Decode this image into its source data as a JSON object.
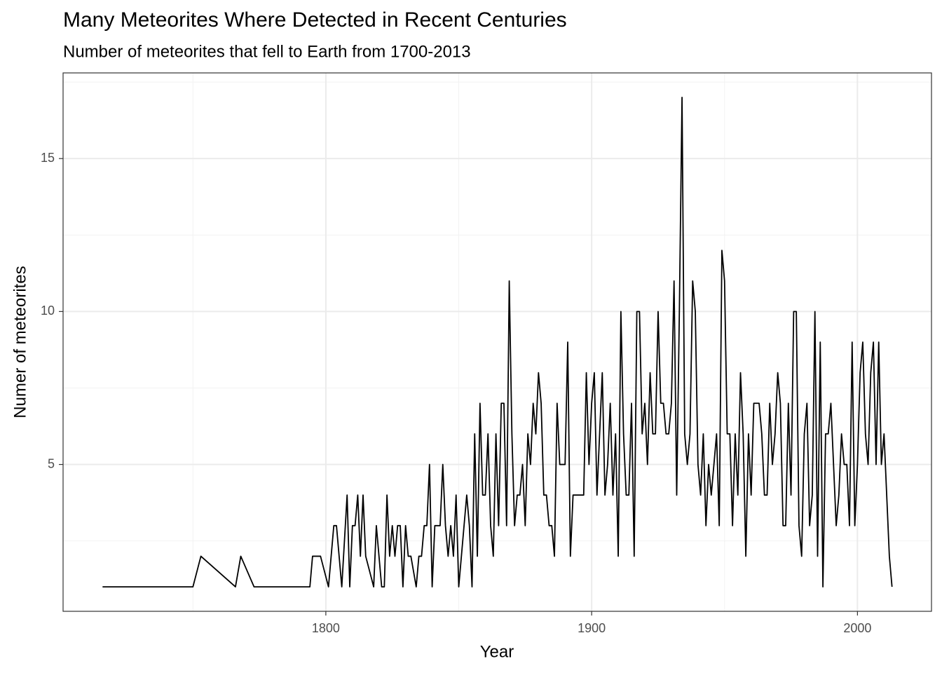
{
  "chart_data": {
    "type": "line",
    "title": "Many Meteorites Where Detected in Recent Centuries",
    "subtitle": "Number of meteorites that fell to Earth from 1700-2013",
    "x_label": "Year",
    "y_label": "Numer of meteorites",
    "color": "#000000",
    "grid": true,
    "xlim": [
      1701.15,
      2027.85
    ],
    "xticks": [
      1800,
      1900,
      2000
    ],
    "x_minor_grid": [
      1750,
      1850,
      1950
    ],
    "ylim": [
      0.2,
      17.8
    ],
    "yticks": [
      5,
      10,
      15
    ],
    "y_minor_grid": [
      2.5,
      7.5,
      12.5,
      17.5
    ],
    "x": [
      1716,
      1750,
      1753,
      1766,
      1768,
      1773,
      1794,
      1795,
      1798,
      1801,
      1803,
      1804,
      1806,
      1808,
      1809,
      1810,
      1811,
      1812,
      1813,
      1814,
      1815,
      1818,
      1819,
      1821,
      1822,
      1823,
      1824,
      1825,
      1826,
      1827,
      1828,
      1829,
      1830,
      1831,
      1832,
      1834,
      1835,
      1836,
      1837,
      1838,
      1839,
      1840,
      1841,
      1843,
      1844,
      1845,
      1846,
      1847,
      1848,
      1849,
      1850,
      1851,
      1853,
      1854,
      1855,
      1856,
      1857,
      1858,
      1859,
      1860,
      1861,
      1862,
      1863,
      1864,
      1865,
      1866,
      1867,
      1868,
      1869,
      1870,
      1871,
      1872,
      1873,
      1874,
      1875,
      1876,
      1877,
      1878,
      1879,
      1880,
      1881,
      1882,
      1883,
      1884,
      1885,
      1886,
      1887,
      1888,
      1889,
      1890,
      1891,
      1892,
      1893,
      1894,
      1897,
      1898,
      1899,
      1900,
      1901,
      1902,
      1903,
      1904,
      1905,
      1906,
      1907,
      1908,
      1909,
      1910,
      1911,
      1912,
      1913,
      1914,
      1915,
      1916,
      1917,
      1918,
      1919,
      1920,
      1921,
      1922,
      1923,
      1924,
      1925,
      1926,
      1927,
      1928,
      1929,
      1930,
      1931,
      1932,
      1933,
      1934,
      1935,
      1936,
      1937,
      1938,
      1939,
      1940,
      1941,
      1942,
      1943,
      1944,
      1945,
      1946,
      1947,
      1948,
      1949,
      1950,
      1951,
      1952,
      1953,
      1954,
      1955,
      1956,
      1957,
      1958,
      1959,
      1960,
      1961,
      1962,
      1963,
      1964,
      1965,
      1966,
      1967,
      1968,
      1969,
      1970,
      1971,
      1972,
      1973,
      1974,
      1975,
      1976,
      1977,
      1978,
      1979,
      1980,
      1981,
      1982,
      1983,
      1984,
      1985,
      1986,
      1987,
      1988,
      1989,
      1990,
      1991,
      1992,
      1993,
      1994,
      1995,
      1996,
      1997,
      1998,
      1999,
      2000,
      2001,
      2002,
      2003,
      2004,
      2005,
      2006,
      2007,
      2008,
      2009,
      2010,
      2012,
      2013
    ],
    "values": [
      1,
      1,
      2,
      1,
      2,
      1,
      1,
      2,
      2,
      1,
      3,
      3,
      1,
      4,
      1,
      3,
      3,
      4,
      2,
      4,
      2,
      1,
      3,
      1,
      1,
      4,
      2,
      3,
      2,
      3,
      3,
      1,
      3,
      2,
      2,
      1,
      2,
      2,
      3,
      3,
      5,
      1,
      3,
      3,
      5,
      3,
      2,
      3,
      2,
      4,
      1,
      2,
      4,
      3,
      1,
      6,
      2,
      7,
      4,
      4,
      6,
      3,
      2,
      6,
      3,
      7,
      7,
      3,
      11,
      6,
      3,
      4,
      4,
      5,
      3,
      6,
      5,
      7,
      6,
      8,
      7,
      4,
      4,
      3,
      3,
      2,
      7,
      5,
      5,
      5,
      9,
      2,
      4,
      4,
      4,
      8,
      5,
      7,
      8,
      4,
      6,
      8,
      4,
      5,
      7,
      4,
      6,
      2,
      10,
      6,
      4,
      4,
      7,
      2,
      10,
      10,
      6,
      7,
      5,
      8,
      6,
      6,
      10,
      7,
      7,
      6,
      6,
      7,
      11,
      4,
      10,
      17,
      6,
      5,
      6,
      11,
      10,
      5,
      4,
      6,
      3,
      5,
      4,
      5,
      6,
      3,
      12,
      11,
      6,
      6,
      3,
      6,
      4,
      8,
      6,
      2,
      6,
      4,
      7,
      7,
      7,
      6,
      4,
      4,
      7,
      5,
      6,
      8,
      7,
      3,
      3,
      7,
      4,
      10,
      10,
      3,
      2,
      6,
      7,
      3,
      4,
      10,
      2,
      9,
      1,
      6,
      6,
      7,
      5,
      3,
      4,
      6,
      5,
      5,
      3,
      9,
      3,
      5,
      8,
      9,
      6,
      5,
      8,
      9,
      5,
      9,
      5,
      6,
      2,
      1
    ]
  }
}
